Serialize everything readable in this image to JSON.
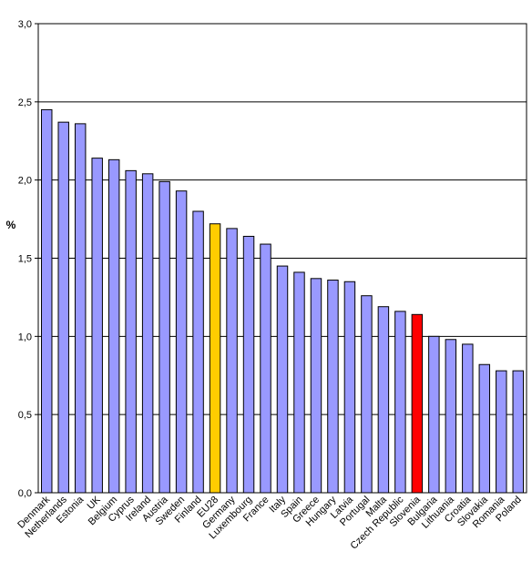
{
  "chart_data": {
    "type": "bar",
    "title": "",
    "xlabel": "",
    "ylabel": "%",
    "ylim": [
      0,
      3
    ],
    "ytick_values": [
      0,
      0.5,
      1,
      1.5,
      2,
      2.5,
      3
    ],
    "ytick_labels": [
      "0,0",
      "0,5",
      "1,0",
      "1,5",
      "2,0",
      "2,5",
      "3,0"
    ],
    "grid": true,
    "legend": "none",
    "categories": [
      "Denmark",
      "Netherlands",
      "Estonia",
      "UK",
      "Belgium",
      "Cyprus",
      "Ireland",
      "Austria",
      "Sweden",
      "Finland",
      "EU28",
      "Germany",
      "Luxembourg",
      "France",
      "Italy",
      "Spain",
      "Greece",
      "Hungary",
      "Latvia",
      "Portugal",
      "Malta",
      "Czech Republic",
      "Slovenia",
      "Bulgaria",
      "Lithuania",
      "Croatia",
      "Slovakia",
      "Romania",
      "Poland"
    ],
    "values": [
      2.45,
      2.37,
      2.36,
      2.14,
      2.13,
      2.06,
      2.04,
      1.99,
      1.93,
      1.8,
      1.72,
      1.69,
      1.64,
      1.59,
      1.45,
      1.41,
      1.37,
      1.36,
      1.35,
      1.26,
      1.19,
      1.16,
      1.14,
      1.0,
      0.98,
      0.95,
      0.82,
      0.78,
      0.78
    ],
    "colors": {
      "default": "#9999ff",
      "EU28": "#ffcc00",
      "Slovenia": "#ff0000",
      "grid": "#000000",
      "bar_stroke": "#000000"
    }
  }
}
